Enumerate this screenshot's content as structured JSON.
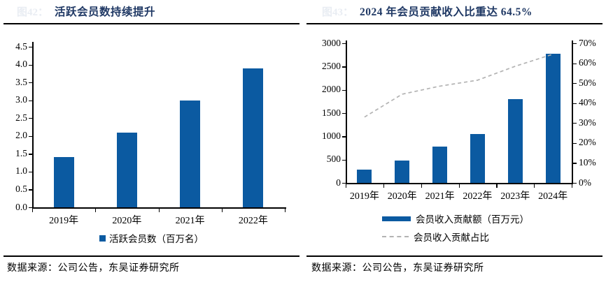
{
  "panels": {
    "left": {
      "fig_label": "图42：",
      "source": "数据来源：公司公告，东吴证券研究所"
    },
    "right": {
      "fig_label": "图43：",
      "source": "数据来源：公司公告，东吴证券研究所"
    }
  },
  "colors": {
    "title_navy": "#1F3864",
    "bar_blue": "#0B5AA1",
    "dash_gray": "#B3B3B3",
    "axis_black": "#000000",
    "faint_fig": "#E9EDF3"
  },
  "chart_data": [
    {
      "type": "bar",
      "title": "活跃会员数持续提升",
      "categories": [
        "2019年",
        "2020年",
        "2021年",
        "2022年"
      ],
      "values": [
        1.4,
        2.1,
        3.0,
        3.9
      ],
      "series_name": "活跃会员数（百万名）",
      "ylim": [
        0,
        4.5
      ],
      "ytick_labels": [
        "0.0",
        "0.5",
        "1.0",
        "1.5",
        "2.0",
        "2.5",
        "3.0",
        "3.5",
        "4.0",
        "4.5"
      ],
      "grid": false,
      "legend_position": "bottom"
    },
    {
      "type": "bar+line",
      "title": "2024 年会员贡献收入比重达 64.5%",
      "categories": [
        "2019年",
        "2020年",
        "2021年",
        "2022年",
        "2023年",
        "2024年"
      ],
      "series": [
        {
          "name": "会员收入贡献额（百万元）",
          "type": "bar",
          "axis": "left",
          "values": [
            280,
            480,
            780,
            1050,
            1800,
            2780
          ]
        },
        {
          "name": "会员收入贡献占比",
          "type": "line",
          "axis": "right",
          "unit": "%",
          "values": [
            33,
            44.5,
            48.5,
            51.5,
            58.5,
            64.5
          ]
        }
      ],
      "left_ylim": [
        0,
        3000
      ],
      "left_ytick_labels": [
        "0",
        "500",
        "1000",
        "1500",
        "2000",
        "2500",
        "3000"
      ],
      "right_ylim": [
        0,
        70
      ],
      "right_ytick_labels": [
        "0%",
        "10%",
        "20%",
        "30%",
        "40%",
        "50%",
        "60%",
        "70%"
      ],
      "grid": false,
      "legend_position": "bottom"
    }
  ]
}
